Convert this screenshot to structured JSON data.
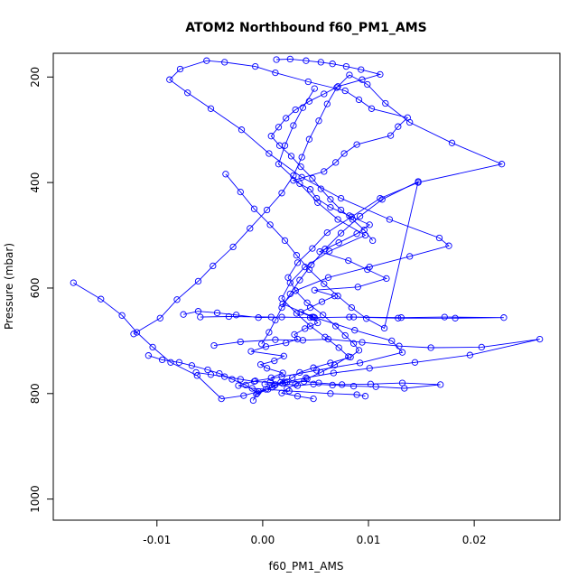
{
  "chart_data": {
    "type": "line",
    "title": "ATOM2 Northbound f60_PM1_AMS",
    "xlabel": "f60_PM1_AMS",
    "ylabel": "Pressure (mbar)",
    "xlim": [
      -0.0198,
      0.0281
    ],
    "ylim": [
      1040,
      155
    ],
    "y_axis_reversed": true,
    "grid": false,
    "legend": "none",
    "x_ticks": [
      "-0.01",
      "0.00",
      "0.01",
      "0.02"
    ],
    "x_tick_values": [
      -0.01,
      0.0,
      0.01,
      0.02
    ],
    "y_ticks": [
      "200",
      "400",
      "600",
      "800",
      "1000"
    ],
    "y_tick_values": [
      200,
      400,
      600,
      800,
      1000
    ],
    "series": [
      {
        "color": "#0000ff",
        "marker": "open-circle",
        "x": [
          -0.0009,
          -0.0006,
          0.0005,
          0.0012,
          0.0008,
          0.0019,
          0.0004,
          -0.0002,
          0.0011,
          0.002,
          -0.0011,
          0.0003,
          0.0022,
          0.0033,
          0.003,
          0.004,
          0.0052,
          0.0047,
          0.0036,
          0.0045,
          0.0056,
          0.0068,
          0.0049,
          0.009,
          0.0117,
          0.0099,
          0.0081,
          0.0054,
          0.0072,
          0.0089,
          0.0101,
          0.0082,
          0.0064,
          0.0051,
          0.0045,
          0.0029,
          0.0058,
          0.0069,
          0.0077,
          0.0089,
          0.0121,
          0.0128,
          0.0137,
          0.0103,
          0.0091,
          0.0078,
          0.0043,
          0.0012,
          -0.0007,
          -0.0036,
          -0.0053,
          -0.0078,
          -0.0088,
          -0.0071,
          -0.0049,
          -0.002,
          0.0006,
          0.0037,
          0.0074,
          0.012,
          0.0167,
          0.0176,
          0.0139,
          0.0101,
          0.0062,
          0.0031,
          0.0019,
          0.0048,
          0.0087,
          0.0122,
          0.0132,
          0.0092,
          0.0051,
          0.0018,
          -0.0007,
          -0.0023,
          -0.001,
          0.0025,
          0.0064,
          0.0089,
          0.0097
        ],
        "y": [
          813,
          801,
          792,
          783,
          770,
          761,
          752,
          745,
          738,
          729,
          720,
          711,
          704,
          697,
          688,
          677,
          666,
          655,
          646,
          637,
          626,
          615,
          604,
          598,
          582,
          565,
          548,
          531,
          514,
          497,
          480,
          463,
          447,
          430,
          413,
          396,
          379,
          362,
          345,
          328,
          311,
          294,
          277,
          260,
          243,
          226,
          209,
          192,
          180,
          172,
          169,
          185,
          205,
          230,
          260,
          300,
          345,
          390,
          430,
          470,
          505,
          520,
          540,
          560,
          580,
          605,
          630,
          655,
          680,
          700,
          722,
          742,
          756,
          768,
          776,
          785,
          790,
          795,
          800,
          802,
          805
        ]
      },
      {
        "color": "#0000ff",
        "marker": "open-circle",
        "x": [
          -0.0122,
          -0.0097,
          -0.0081,
          -0.0061,
          -0.0047,
          -0.0028,
          -0.0012,
          0.0004,
          0.0018,
          0.0029,
          0.0037,
          0.0044,
          0.0053,
          0.0061,
          0.007,
          0.0082,
          0.0099,
          0.0116,
          0.0139,
          0.0179,
          0.0226,
          0.0147,
          0.0111,
          0.0084,
          0.0061,
          0.0047,
          0.0033,
          0.0024,
          0.0031,
          0.0042,
          0.0057,
          0.0069,
          0.0078,
          0.0086,
          0.0091,
          0.0083,
          0.0064,
          0.0048,
          0.0035,
          0.0028,
          0.0017,
          0.0009,
          -0.0004,
          -0.0018,
          -0.0039,
          -0.0062,
          -0.0087,
          -0.0104,
          -0.0119,
          -0.0133,
          -0.0153,
          -0.0179
        ],
        "y": [
          687,
          657,
          622,
          587,
          558,
          522,
          487,
          452,
          420,
          387,
          352,
          318,
          283,
          251,
          220,
          196,
          214,
          250,
          286,
          325,
          365,
          400,
          430,
          465,
          495,
          525,
          552,
          580,
          605,
          628,
          651,
          672,
          690,
          705,
          718,
          731,
          742,
          751,
          760,
          770,
          779,
          788,
          796,
          804,
          810,
          766,
          741,
          712,
          684,
          652,
          621,
          590
        ]
      },
      {
        "color": "#0000ff",
        "marker": "open-circle",
        "x": [
          -0.0046,
          -0.0021,
          0.0012,
          0.0038,
          0.0062,
          0.0094,
          0.0129,
          0.0159,
          0.0207,
          0.0262,
          0.0196,
          0.0144,
          0.0101,
          0.0067,
          0.0041,
          0.0023,
          0.0011,
          0.0003,
          -0.0005,
          -0.0016,
          -0.0029,
          -0.0041,
          -0.0052,
          -0.0067,
          -0.0079,
          -0.0095,
          -0.0108
        ],
        "y": [
          709,
          702,
          698,
          699,
          697,
          703,
          710,
          713,
          712,
          697,
          727,
          741,
          752,
          761,
          770,
          778,
          785,
          792,
          799,
          784,
          773,
          762,
          755,
          747,
          741,
          736,
          728
        ]
      },
      {
        "color": "#0000ff",
        "marker": "open-circle",
        "x": [
          -0.0059,
          -0.0032,
          0.0008,
          0.0049,
          0.0086,
          0.0131,
          0.0172,
          0.0228,
          0.0182,
          0.0128,
          0.0082,
          0.0045,
          0.0018,
          -0.0004,
          -0.0025,
          -0.0043,
          -0.0061,
          -0.0075
        ],
        "y": [
          655,
          654,
          655,
          656,
          655,
          656,
          655,
          656,
          657,
          657,
          655,
          656,
          655,
          656,
          651,
          647,
          644,
          650
        ]
      },
      {
        "color": "#0000ff",
        "marker": "open-circle",
        "x": [
          0.0002,
          0.0021,
          0.0039,
          0.0053,
          0.0075,
          0.0102,
          0.0132,
          0.0168,
          0.0134,
          0.0107,
          0.0086,
          0.0066,
          0.0048,
          0.0033,
          0.0019,
          0.0007,
          -0.0008,
          -0.0021,
          -0.0036,
          -0.0049,
          -0.0063
        ],
        "y": [
          782,
          779,
          777,
          780,
          783,
          782,
          780,
          783,
          790,
          787,
          786,
          784,
          782,
          785,
          781,
          779,
          777,
          773,
          768,
          764,
          760
        ]
      },
      {
        "color": "#0000ff",
        "marker": "open-circle",
        "x": [
          0.0013,
          0.0026,
          0.0041,
          0.0055,
          0.0066,
          0.0079,
          0.0093,
          0.0111,
          0.0094,
          0.0071,
          0.0058,
          0.0044,
          0.0031,
          0.0022,
          0.0015,
          0.0008,
          0.0016,
          0.0027,
          0.0036,
          0.0047,
          0.0055,
          0.0064,
          0.0074,
          0.0085,
          0.0096,
          0.0104
        ],
        "y": [
          167,
          166,
          169,
          172,
          175,
          180,
          186,
          195,
          205,
          218,
          232,
          246,
          262,
          278,
          295,
          312,
          330,
          350,
          370,
          392,
          412,
          432,
          452,
          470,
          490,
          510
        ]
      },
      {
        "color": "#0000ff",
        "marker": "open-circle",
        "x": [
          -0.0035,
          -0.0021,
          -0.0008,
          0.0007,
          0.0021,
          0.0032,
          0.0044,
          0.0058,
          0.0071,
          0.0084,
          0.0098,
          0.0115,
          0.0147,
          0.0113,
          0.0092,
          0.0074,
          0.0059,
          0.0046,
          0.0035,
          0.0026,
          0.0018,
          0.0012,
          0.0006,
          -0.0001
        ],
        "y": [
          384,
          418,
          450,
          480,
          510,
          538,
          565,
          592,
          615,
          637,
          658,
          676,
          398,
          432,
          464,
          496,
          526,
          556,
          585,
          611,
          637,
          661,
          684,
          706
        ]
      },
      {
        "color": "#0000ff",
        "marker": "open-circle",
        "x": [
          0.0049,
          0.0038,
          0.0029,
          0.0021,
          0.0015,
          0.0035,
          0.0052,
          0.0071,
          0.0097,
          0.0063,
          0.004,
          0.0026,
          0.0018,
          0.0032,
          0.0045,
          0.0059,
          0.0072,
          0.0081,
          0.0068,
          0.0055,
          0.0042,
          0.0031,
          0.0023,
          0.0018,
          0.0033,
          0.0048
        ],
        "y": [
          222,
          258,
          292,
          330,
          365,
          402,
          438,
          470,
          500,
          530,
          560,
          590,
          620,
          648,
          672,
          693,
          713,
          730,
          746,
          760,
          772,
          782,
          791,
          799,
          805,
          810
        ]
      }
    ]
  }
}
